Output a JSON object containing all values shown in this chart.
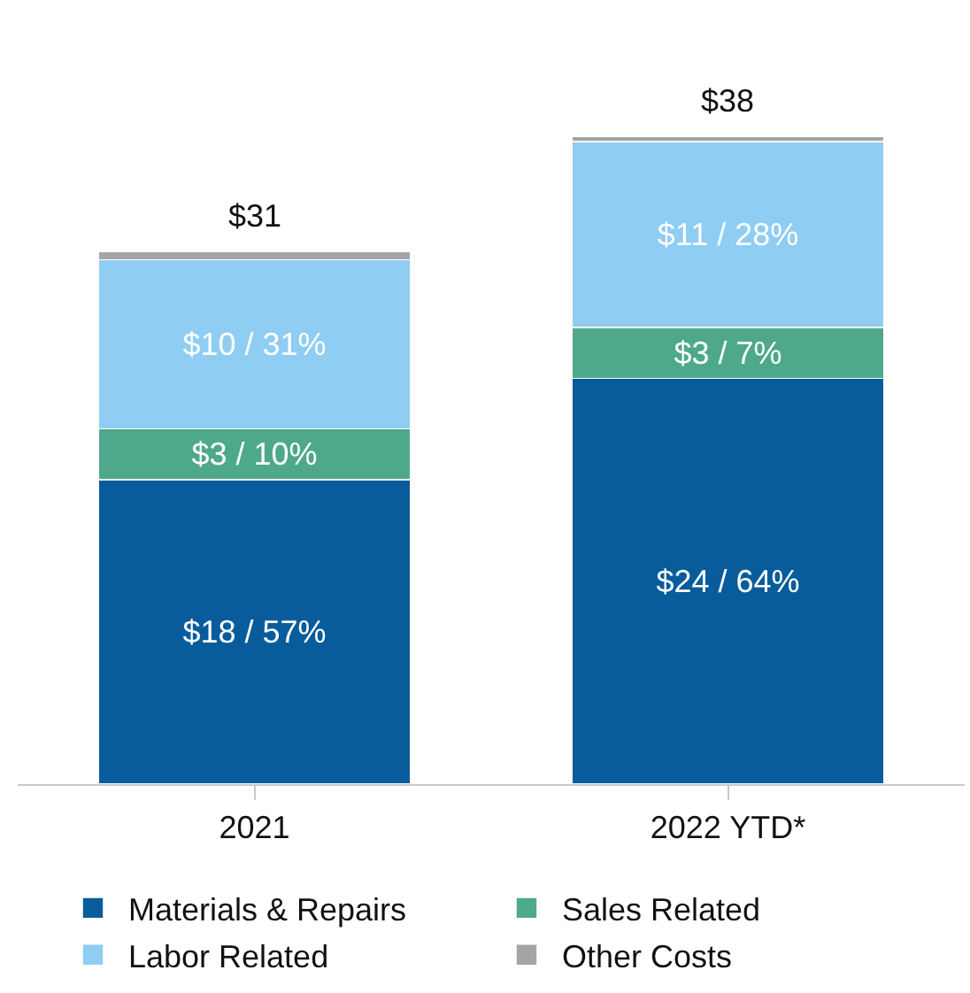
{
  "chart_data": {
    "type": "bar",
    "stacked": true,
    "categories": [
      "2021",
      "2022 YTD*"
    ],
    "series": [
      {
        "name": "Materials & Repairs",
        "color": "#085c9c",
        "values": [
          18,
          24
        ],
        "value_labels": [
          "$18 / 57%",
          "$24 / 64%"
        ]
      },
      {
        "name": "Sales Related",
        "color": "#4ea88c",
        "values": [
          3,
          3
        ],
        "value_labels": [
          "$3 / 10%",
          "$3 / 7%"
        ]
      },
      {
        "name": "Labor Related",
        "color": "#8fcdf2",
        "values": [
          10,
          11
        ],
        "value_labels": [
          "$10 / 31%",
          "$11 / 28%"
        ]
      },
      {
        "name": "Other Costs",
        "color": "#a5a5a5",
        "values": [
          0.5,
          0.3
        ],
        "value_labels": [
          null,
          null
        ]
      }
    ],
    "totals": [
      "$31",
      "$38"
    ],
    "legend": "bottom"
  }
}
